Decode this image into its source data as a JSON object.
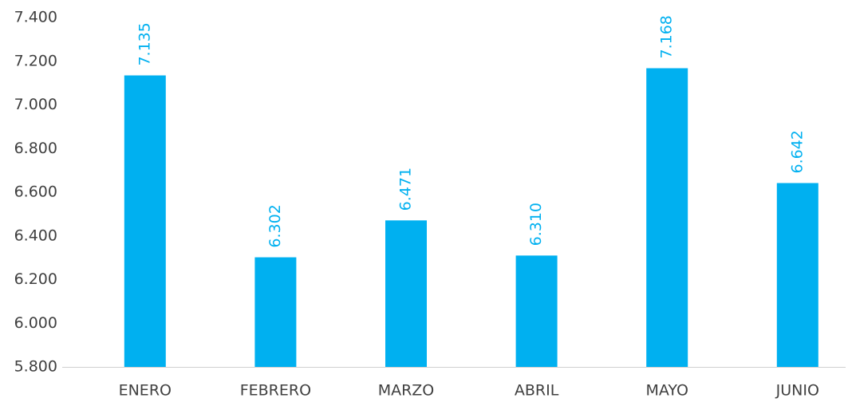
{
  "chart_data": {
    "type": "bar",
    "categories": [
      "ENERO",
      "FEBRERO",
      "MARZO",
      "ABRIL",
      "MAYO",
      "JUNIO"
    ],
    "values": [
      7135,
      6302,
      6471,
      6310,
      7168,
      6642
    ],
    "value_labels": [
      "7.135",
      "6.302",
      "6.471",
      "6.310",
      "7.168",
      "6.642"
    ],
    "color": "#00b0f0",
    "ylim": [
      5800,
      7400
    ],
    "yticks": [
      {
        "value": 5800,
        "label": "5.800"
      },
      {
        "value": 6000,
        "label": "6.000"
      },
      {
        "value": 6200,
        "label": "6.200"
      },
      {
        "value": 6400,
        "label": "6.400"
      },
      {
        "value": 6600,
        "label": "6.600"
      },
      {
        "value": 6800,
        "label": "6.800"
      },
      {
        "value": 7000,
        "label": "7.000"
      },
      {
        "value": 7200,
        "label": "7.200"
      },
      {
        "value": 7400,
        "label": "7.400"
      }
    ],
    "grid": false
  }
}
